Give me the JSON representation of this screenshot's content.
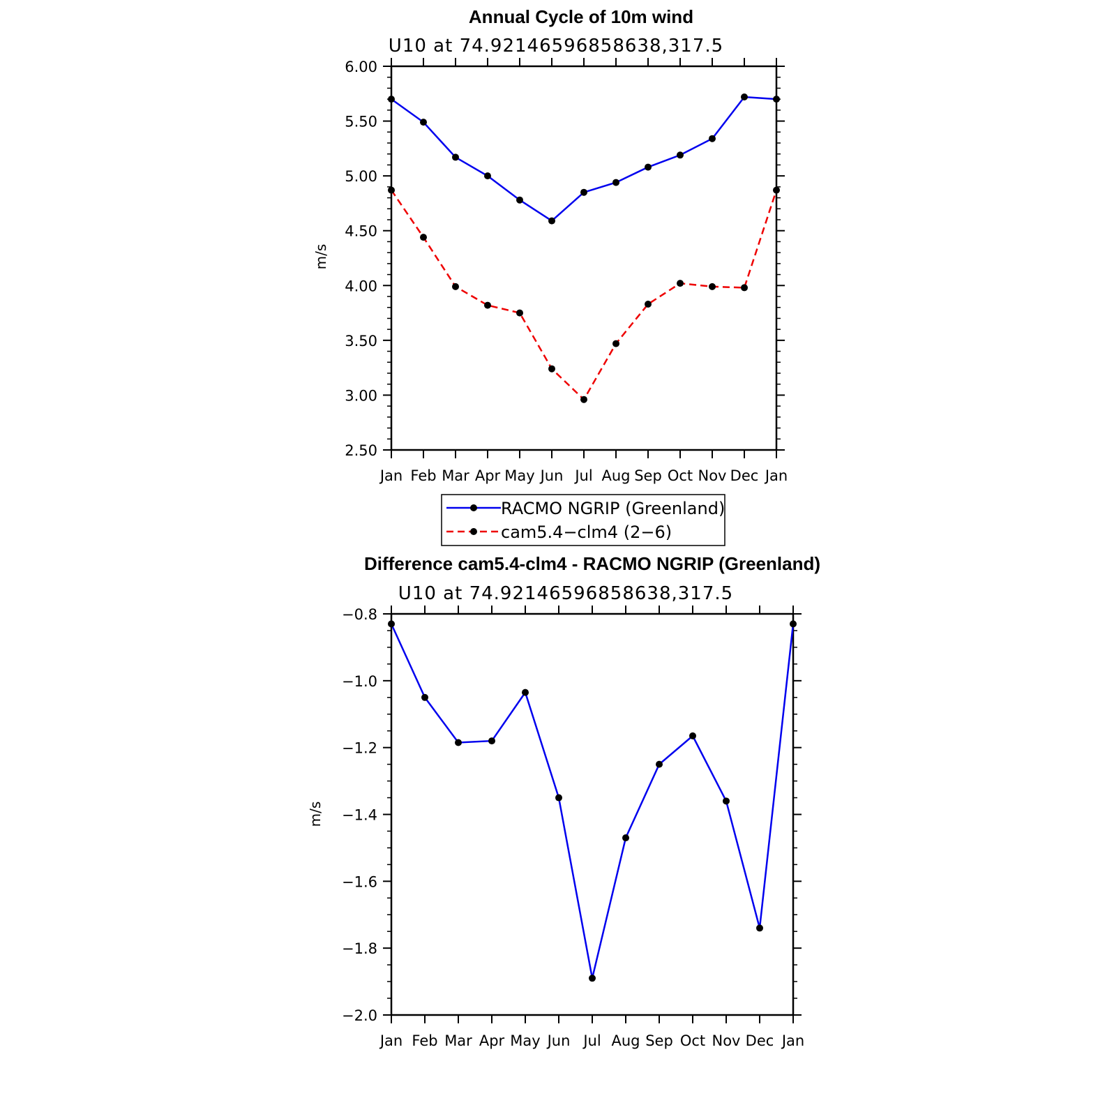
{
  "chart_data": [
    {
      "type": "line",
      "title": "Annual Cycle of 10m wind",
      "subtitle": "U10 at 74.92146596858638,317.5",
      "ylabel": "m/s",
      "xlabel": "",
      "ylim": [
        2.5,
        6.0
      ],
      "yticks": [
        "2.50",
        "3.00",
        "3.50",
        "4.00",
        "4.50",
        "5.00",
        "5.50",
        "6.00"
      ],
      "categories": [
        "Jan",
        "Feb",
        "Mar",
        "Apr",
        "May",
        "Jun",
        "Jul",
        "Aug",
        "Sep",
        "Oct",
        "Nov",
        "Dec",
        "Jan"
      ],
      "series": [
        {
          "name": "RACMO NGRIP (Greenland)",
          "color": "#0000ee",
          "dashed": false,
          "values": [
            5.7,
            5.49,
            5.17,
            5.0,
            4.78,
            4.59,
            4.85,
            4.94,
            5.08,
            5.19,
            5.34,
            5.72,
            5.7
          ]
        },
        {
          "name": "cam5.4−clm4 (2−6)",
          "color": "#ee0000",
          "dashed": true,
          "values": [
            4.87,
            4.44,
            3.99,
            3.82,
            3.75,
            3.24,
            2.96,
            3.47,
            3.83,
            4.02,
            3.99,
            3.98,
            4.87
          ]
        }
      ],
      "legend": [
        "RACMO NGRIP (Greenland)",
        "cam5.4−clm4 (2−6)"
      ]
    },
    {
      "type": "line",
      "title": "Difference cam5.4-clm4 - RACMO NGRIP (Greenland)",
      "subtitle": "U10 at 74.92146596858638,317.5",
      "ylabel": "m/s",
      "xlabel": "",
      "ylim": [
        -2.0,
        -0.8
      ],
      "yticks": [
        "−2.0",
        "−1.8",
        "−1.6",
        "−1.4",
        "−1.2",
        "−1.0",
        "−0.8"
      ],
      "categories": [
        "Jan",
        "Feb",
        "Mar",
        "Apr",
        "May",
        "Jun",
        "Jul",
        "Aug",
        "Sep",
        "Oct",
        "Nov",
        "Dec",
        "Jan"
      ],
      "series": [
        {
          "name": "Difference",
          "color": "#0000ee",
          "dashed": false,
          "values": [
            -0.83,
            -1.05,
            -1.185,
            -1.18,
            -1.035,
            -1.35,
            -1.89,
            -1.47,
            -1.25,
            -1.165,
            -1.36,
            -1.74,
            -0.83
          ]
        }
      ]
    }
  ]
}
